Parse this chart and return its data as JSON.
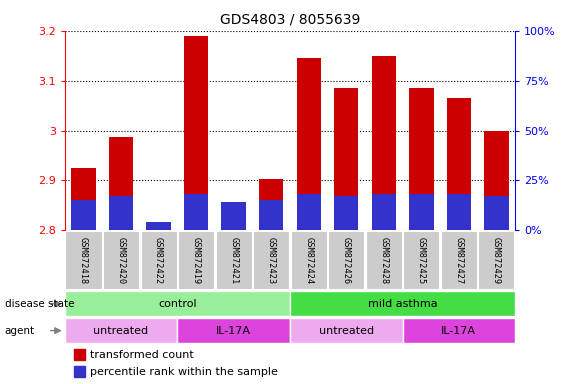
{
  "title": "GDS4803 / 8055639",
  "samples": [
    "GSM872418",
    "GSM872420",
    "GSM872422",
    "GSM872419",
    "GSM872421",
    "GSM872423",
    "GSM872424",
    "GSM872426",
    "GSM872428",
    "GSM872425",
    "GSM872427",
    "GSM872429"
  ],
  "transformed_count": [
    2.925,
    2.988,
    2.805,
    3.19,
    2.845,
    2.902,
    3.145,
    3.085,
    3.15,
    3.085,
    3.065,
    3.0
  ],
  "percentile_rank_pct": [
    15,
    17,
    4,
    18,
    14,
    15,
    18,
    17,
    18,
    18,
    18,
    17
  ],
  "ymin": 2.8,
  "ymax": 3.2,
  "yticks": [
    2.8,
    2.9,
    3.0,
    3.1,
    3.2
  ],
  "bar_color_red": "#cc0000",
  "bar_color_blue": "#3333cc",
  "background_bar": "#cccccc",
  "disease_state_groups": [
    {
      "label": "control",
      "start": 0,
      "end": 6,
      "color": "#aaeea a"
    },
    {
      "label": "mild asthma",
      "start": 6,
      "end": 12,
      "color": "#44dd44"
    }
  ],
  "agent_groups": [
    {
      "label": "untreated",
      "start": 0,
      "end": 3,
      "color": "#eeaaee"
    },
    {
      "label": "IL-17A",
      "start": 3,
      "end": 6,
      "color": "#dd44dd"
    },
    {
      "label": "untreated",
      "start": 6,
      "end": 9,
      "color": "#eeaaee"
    },
    {
      "label": "IL-17A",
      "start": 9,
      "end": 12,
      "color": "#dd44dd"
    }
  ],
  "legend_items": [
    {
      "label": "transformed count",
      "color": "#cc0000"
    },
    {
      "label": "percentile rank within the sample",
      "color": "#3333cc"
    }
  ],
  "right_yticklabels": [
    "0%",
    "25%",
    "50%",
    "75%",
    "100%"
  ],
  "right_ytick_pcts": [
    0,
    25,
    50,
    75,
    100
  ]
}
